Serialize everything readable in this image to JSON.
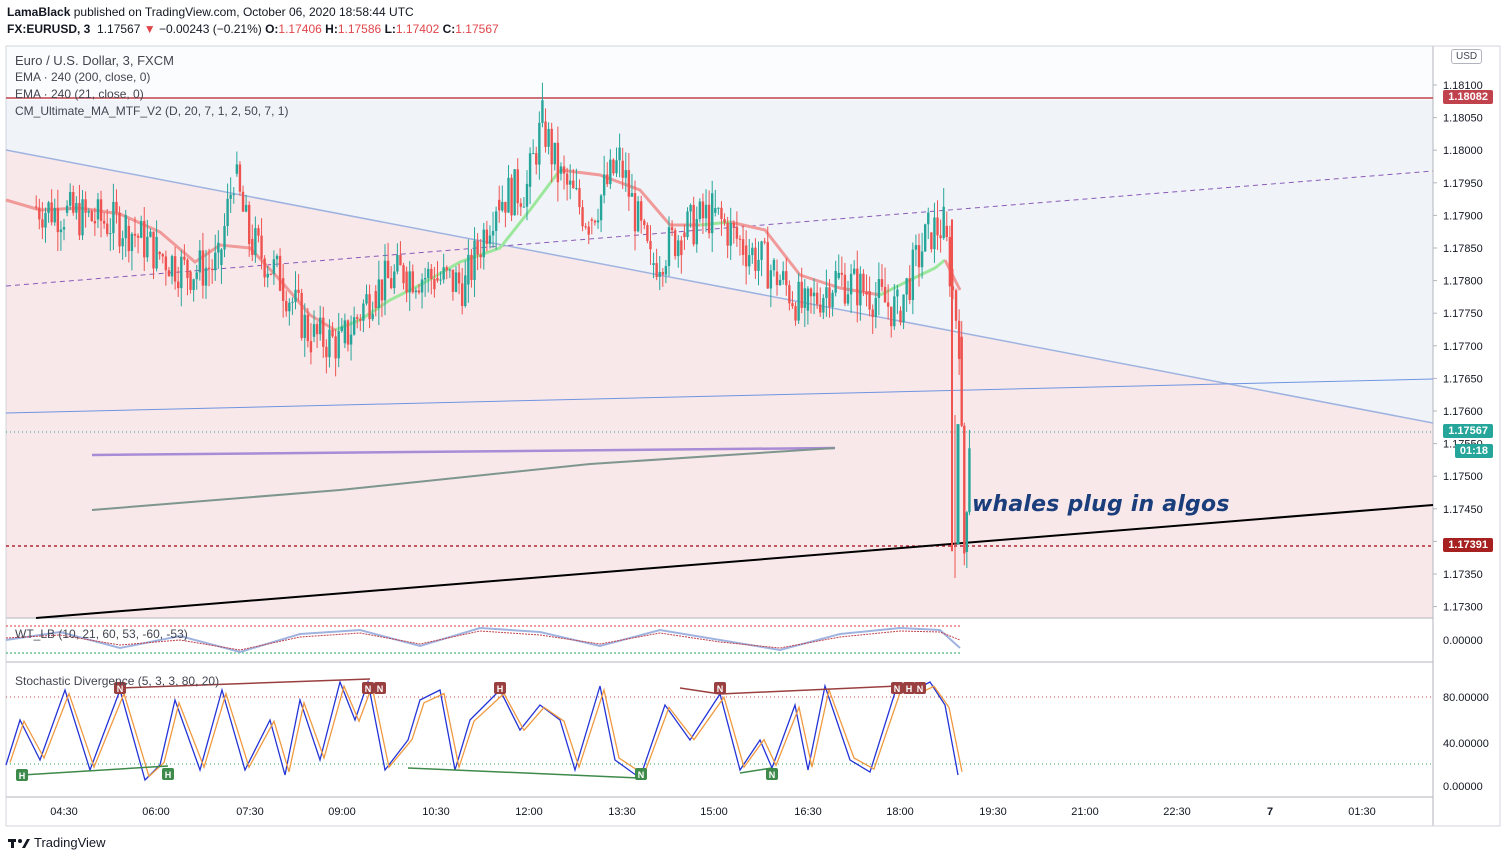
{
  "header": {
    "publisher": "LamaBlack",
    "published_text": "published on TradingView.com, October 06, 2020 18:58:44 UTC",
    "symbol": "FX:EURUSD, 3",
    "last": "1.17567",
    "change": "−0.00243 (−0.21%)",
    "o_label": "O:",
    "o": "1.17406",
    "h_label": "H:",
    "h": "1.17586",
    "l_label": "L:",
    "l": "1.17402",
    "c_label": "C:",
    "c": "1.17567"
  },
  "legend": {
    "title": "Euro / U.S. Dollar, 3, FXCM",
    "ema1": "EMA · 240 (200, close, 0)",
    "ema2": "EMA · 240 (21, close, 0)",
    "cm": "CM_Ultimate_MA_MTF_V2 (D, 20, 7, 1, 2, 50, 7, 1)",
    "wt": "WT_LB (10, 21, 60, 53, -60, -53)",
    "stoch": "Stochastic Divergence (5, 3, 3, 80, 20)"
  },
  "currency": "USD",
  "annotation": "whales plug in algos",
  "price_labels": {
    "top": "1.18082",
    "current": "1.17567",
    "countdown": "01:18",
    "low": "1.17391"
  },
  "price_axis": [
    "1.18100",
    "1.18050",
    "1.18000",
    "1.17950",
    "1.17900",
    "1.17850",
    "1.17800",
    "1.17750",
    "1.17700",
    "1.17650",
    "1.17600",
    "1.17550",
    "1.17500",
    "1.17450",
    "1.17400",
    "1.17350",
    "1.17300"
  ],
  "wt_axis": [
    "0.00000"
  ],
  "stoch_axis": [
    "80.00000",
    "40.00000",
    "0.00000"
  ],
  "time_axis": [
    "04:30",
    "06:00",
    "07:30",
    "09:00",
    "10:30",
    "12:00",
    "13:30",
    "15:00",
    "16:30",
    "18:00",
    "19:30",
    "21:00",
    "22:30",
    "7",
    "01:30"
  ],
  "div_labels": [
    "H",
    "N",
    "H",
    "N",
    "N",
    "H",
    "N",
    "N",
    "N",
    "N",
    "H",
    "N"
  ],
  "brand": "TradingView",
  "colors": {
    "up": "#26a69a",
    "down": "#ef5350",
    "accent_red": "#b22833",
    "accent_teal": "#26a69a"
  },
  "chart_data": {
    "type": "candlestick",
    "x_range": [
      "04:00",
      "02:00"
    ],
    "ylim": [
      1.1728,
      1.1812
    ],
    "horizontal_levels": [
      1.18082,
      1.17567,
      1.17391
    ],
    "close_series_approx": [
      [
        "04:00",
        1.1792
      ],
      [
        "04:30",
        1.1791
      ],
      [
        "05:00",
        1.179
      ],
      [
        "05:30",
        1.1789
      ],
      [
        "06:00",
        1.1785
      ],
      [
        "06:30",
        1.1782
      ],
      [
        "07:00",
        1.1783
      ],
      [
        "07:15",
        1.1797
      ],
      [
        "07:30",
        1.1787
      ],
      [
        "08:00",
        1.1781
      ],
      [
        "08:30",
        1.1772
      ],
      [
        "09:00",
        1.1771
      ],
      [
        "09:30",
        1.1779
      ],
      [
        "10:00",
        1.1782
      ],
      [
        "10:30",
        1.1781
      ],
      [
        "11:00",
        1.178
      ],
      [
        "11:30",
        1.1793
      ],
      [
        "12:00",
        1.1795
      ],
      [
        "12:15",
        1.1805
      ],
      [
        "12:30",
        1.1797
      ],
      [
        "13:00",
        1.179
      ],
      [
        "13:30",
        1.1799
      ],
      [
        "14:00",
        1.1783
      ],
      [
        "14:30",
        1.1788
      ],
      [
        "15:00",
        1.1791
      ],
      [
        "15:30",
        1.1786
      ],
      [
        "16:00",
        1.1782
      ],
      [
        "16:30",
        1.1776
      ],
      [
        "17:00",
        1.1781
      ],
      [
        "17:30",
        1.1779
      ],
      [
        "18:00",
        1.1776
      ],
      [
        "18:30",
        1.1788
      ],
      [
        "18:45",
        1.1789
      ],
      [
        "19:00",
        1.1772
      ],
      [
        "19:05",
        1.1739
      ],
      [
        "19:10",
        1.17567
      ]
    ]
  }
}
